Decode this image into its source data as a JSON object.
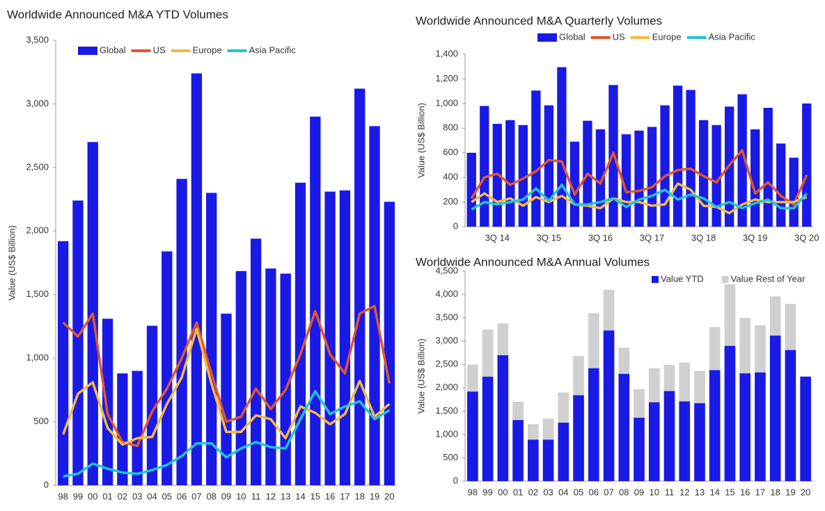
{
  "chart_data": [
    {
      "type": "combo",
      "title": "Worldwide Announced M&A YTD Volumes",
      "y_label": "Value (US$ Billion)",
      "categories": [
        "98",
        "99",
        "00",
        "01",
        "02",
        "03",
        "04",
        "05",
        "06",
        "07",
        "08",
        "09",
        "10",
        "11",
        "12",
        "13",
        "14",
        "15",
        "16",
        "17",
        "18",
        "19",
        "20"
      ],
      "series": [
        {
          "name": "Global",
          "mark": "bar",
          "color": "#1a1ae6",
          "values": [
            1920,
            2240,
            2700,
            1310,
            880,
            900,
            1255,
            1840,
            2410,
            3240,
            2300,
            1350,
            1685,
            1940,
            1705,
            1665,
            2380,
            2900,
            2310,
            2320,
            3120,
            2825,
            2230
          ]
        },
        {
          "name": "US",
          "mark": "line",
          "color": "#e2552d",
          "values": [
            1280,
            1170,
            1350,
            560,
            340,
            310,
            580,
            760,
            1000,
            1280,
            880,
            500,
            540,
            760,
            600,
            750,
            1030,
            1370,
            1030,
            880,
            1350,
            1410,
            800
          ]
        },
        {
          "name": "Europe",
          "mark": "line",
          "color": "#f4b942",
          "values": [
            400,
            720,
            810,
            450,
            320,
            370,
            380,
            640,
            850,
            1230,
            800,
            420,
            420,
            550,
            520,
            370,
            620,
            570,
            480,
            560,
            820,
            540,
            640
          ]
        },
        {
          "name": "Asia Pacific",
          "mark": "line",
          "color": "#22c4d6",
          "values": [
            70,
            90,
            170,
            130,
            100,
            90,
            120,
            160,
            230,
            330,
            330,
            220,
            290,
            340,
            300,
            290,
            520,
            740,
            560,
            620,
            660,
            520,
            590
          ]
        }
      ],
      "ylim": [
        0,
        3500
      ],
      "yticks": [
        0,
        500,
        {
          "value": 1000,
          "label": "1,000"
        },
        {
          "value": 1500,
          "label": "1,500"
        },
        {
          "value": 2000,
          "label": "2,000"
        },
        {
          "value": 2500,
          "label": "2,500"
        },
        {
          "value": 3000,
          "label": "3,000"
        },
        {
          "value": 3500,
          "label": "3,500"
        }
      ]
    },
    {
      "type": "combo",
      "title": "Worldwide Announced M&A Quarterly Volumes",
      "y_label": "Value (US$ Billion)",
      "categories": [
        null,
        null,
        "3Q 14",
        null,
        null,
        null,
        "3Q 15",
        null,
        null,
        null,
        "3Q 16",
        null,
        null,
        null,
        "3Q 17",
        null,
        null,
        null,
        "3Q 18",
        null,
        null,
        null,
        "3Q 19",
        null,
        null,
        null,
        "3Q 20"
      ],
      "series": [
        {
          "name": "Global",
          "mark": "bar",
          "color": "#1a1ae6",
          "values": [
            600,
            980,
            835,
            865,
            825,
            1105,
            985,
            1295,
            690,
            860,
            790,
            1150,
            750,
            780,
            810,
            985,
            1145,
            1110,
            865,
            825,
            975,
            1075,
            790,
            965,
            675,
            560,
            1000
          ]
        },
        {
          "name": "US",
          "mark": "line",
          "color": "#e2552d",
          "values": [
            230,
            400,
            430,
            340,
            390,
            450,
            540,
            530,
            260,
            430,
            350,
            600,
            280,
            290,
            320,
            410,
            460,
            470,
            410,
            360,
            500,
            620,
            270,
            360,
            250,
            180,
            420
          ]
        },
        {
          "name": "Europe",
          "mark": "line",
          "color": "#f4b942",
          "values": [
            200,
            270,
            200,
            230,
            170,
            240,
            200,
            250,
            180,
            170,
            150,
            230,
            200,
            200,
            170,
            180,
            350,
            300,
            170,
            160,
            110,
            180,
            220,
            200,
            200,
            200,
            240
          ]
        },
        {
          "name": "Asia Pacific",
          "mark": "line",
          "color": "#22c4d6",
          "values": [
            140,
            200,
            180,
            200,
            220,
            310,
            210,
            340,
            180,
            180,
            200,
            230,
            160,
            220,
            250,
            300,
            220,
            260,
            230,
            160,
            200,
            150,
            190,
            220,
            150,
            150,
            270
          ]
        }
      ],
      "ylim": [
        0,
        1400
      ],
      "yticks": [
        0,
        200,
        400,
        600,
        800,
        {
          "value": 1000,
          "label": "1,000"
        },
        {
          "value": 1200,
          "label": "1,200"
        },
        {
          "value": 1400,
          "label": "1,400"
        }
      ]
    },
    {
      "type": "stacked_bar",
      "title": "Worldwide Announced M&A Annual Volumes",
      "y_label": "Value (US$ Billion)",
      "categories": [
        "98",
        "99",
        "00",
        "01",
        "02",
        "03",
        "04",
        "05",
        "06",
        "07",
        "08",
        "09",
        "10",
        "11",
        "12",
        "13",
        "14",
        "15",
        "16",
        "17",
        "18",
        "19",
        "20"
      ],
      "series": [
        {
          "name": "Value YTD",
          "color": "#1a1ae6",
          "values": [
            1920,
            2240,
            2700,
            1310,
            890,
            890,
            1255,
            1840,
            2420,
            3230,
            2300,
            1360,
            1690,
            1930,
            1710,
            1670,
            2380,
            2900,
            2310,
            2330,
            3120,
            2810,
            2240
          ]
        },
        {
          "name": "Value Rest of Year",
          "color": "#d0d0d0",
          "values": [
            580,
            1010,
            680,
            390,
            330,
            450,
            645,
            840,
            1180,
            870,
            560,
            610,
            730,
            560,
            830,
            690,
            920,
            1320,
            1190,
            1010,
            840,
            990,
            null
          ]
        }
      ],
      "ylim": [
        0,
        4500
      ],
      "yticks": [
        0,
        500,
        {
          "value": 1000,
          "label": "1,000"
        },
        {
          "value": 1500,
          "label": "1,500"
        },
        {
          "value": 2000,
          "label": "2,000"
        },
        {
          "value": 2500,
          "label": "2,500"
        },
        {
          "value": 3000,
          "label": "3,000"
        },
        {
          "value": 3500,
          "label": "3,500"
        },
        {
          "value": 4000,
          "label": "4,000"
        },
        {
          "value": 4500,
          "label": "4,500"
        }
      ]
    }
  ]
}
